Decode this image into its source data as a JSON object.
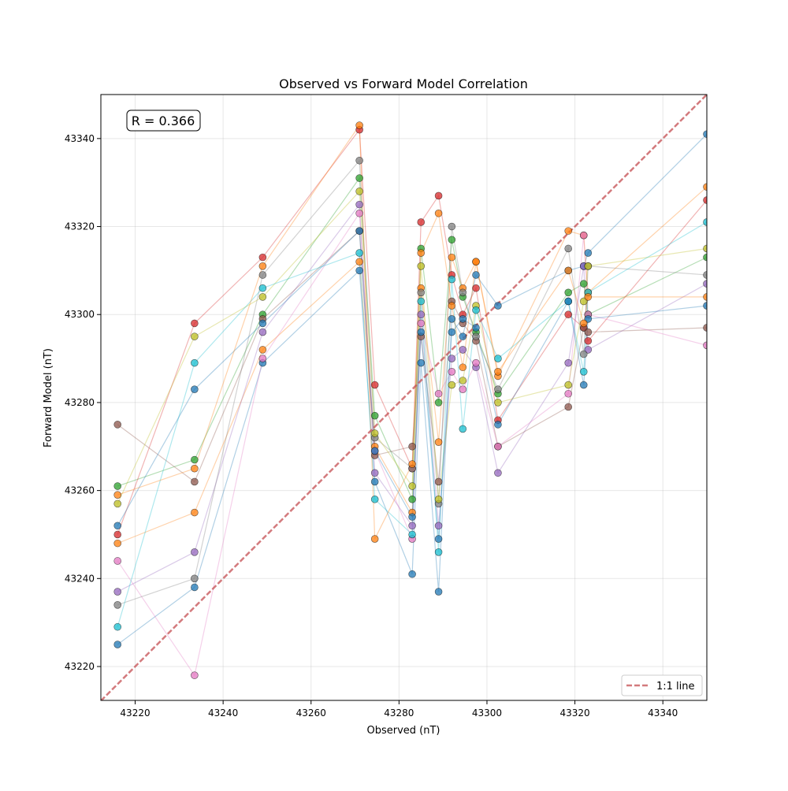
{
  "chart_data": {
    "type": "scatter",
    "title": "Observed vs Forward Model Correlation",
    "xlabel": "Observed (nT)",
    "ylabel": "Forward Model (nT)",
    "xlim": [
      43212.2,
      43350
    ],
    "ylim": [
      43212.3,
      43350
    ],
    "xticks": [
      43220,
      43240,
      43260,
      43280,
      43300,
      43320,
      43340
    ],
    "yticks": [
      43220,
      43240,
      43260,
      43280,
      43300,
      43320,
      43340
    ],
    "grid": true,
    "annotation": "R = 0.366",
    "legend": {
      "placement": "bottom-right",
      "entries": [
        "1:1 line"
      ]
    },
    "reference_line": {
      "label": "1:1 line",
      "color": "#c44e52",
      "style": "dashed"
    },
    "x": [
      43216,
      43233.5,
      43249,
      43271,
      43274.5,
      43283,
      43285,
      43289,
      43292,
      43294.5,
      43297.5,
      43302.5,
      43318.5,
      43322,
      43323,
      43350
    ],
    "colors": [
      "#1f77b4",
      "#ff7f0e",
      "#2ca02c",
      "#d62728",
      "#9467bd",
      "#8c564b",
      "#e377c2",
      "#7f7f7f",
      "#bcbd22",
      "#17becf"
    ],
    "series": [
      {
        "values": [
          43225,
          43238,
          43289,
          43310,
          43262,
          43241,
          43289,
          43237,
          43299,
          43295,
          43309,
          43302,
          43310,
          43311,
          43314,
          43341
        ]
      },
      {
        "values": [
          43248,
          43255,
          43292,
          43312,
          43270,
          43255,
          43306,
          43271,
          43313,
          43306,
          43312,
          43286,
          43319,
          43318,
          43305,
          43329
        ]
      },
      {
        "values": [
          43261,
          43267,
          43300,
          43331,
          43277,
          43258,
          43315,
          43280,
          43317,
          43304,
          43296,
          43282,
          43305,
          43307,
          43300,
          43313
        ]
      },
      {
        "values": [
          43250,
          43298,
          43313,
          43342,
          43284,
          43265,
          43321,
          43327,
          43309,
          43300,
          43306,
          43276,
          43300,
          43297,
          43294,
          43326
        ]
      },
      {
        "values": [
          43237,
          43246,
          43296,
          43325,
          43264,
          43252,
          43300,
          43252,
          43290,
          43292,
          43288,
          43264,
          43289,
          43311,
          43292,
          43307
        ]
      },
      {
        "values": [
          43275,
          43262,
          43299,
          43319,
          43268,
          43270,
          43295,
          43262,
          43303,
          43298,
          43294,
          43270,
          43279,
          43297,
          43296,
          43297
        ]
      },
      {
        "values": [
          43244,
          43218,
          43290,
          43323,
          43269,
          43249,
          43298,
          43282,
          43287,
          43283,
          43289,
          43270,
          43282,
          43318,
          43300,
          43293
        ]
      },
      {
        "values": [
          43234,
          43240,
          43309,
          43335,
          43272,
          43265,
          43305,
          43257,
          43320,
          43305,
          43295,
          43283,
          43315,
          43291,
          43311,
          43309
        ]
      },
      {
        "values": [
          43257,
          43295,
          43304,
          43328,
          43273,
          43261,
          43311,
          43258,
          43284,
          43285,
          43302,
          43280,
          43284,
          43303,
          43311,
          43315
        ]
      },
      {
        "values": [
          43229,
          43289,
          43306,
          43314,
          43258,
          43250,
          43303,
          43246,
          43308,
          43274,
          43301,
          43290,
          43303,
          43287,
          43305,
          43321
        ]
      },
      {
        "values": [
          43252,
          43283,
          43298,
          43319,
          43269,
          43254,
          43296,
          43249,
          43296,
          43299,
          43297,
          43275,
          43303,
          43284,
          43299,
          43302
        ]
      },
      {
        "values": [
          43259,
          43265,
          43311,
          43343,
          43249,
          43266,
          43314,
          43323,
          43302,
          43288,
          43312,
          43287,
          43310,
          43298,
          43304,
          43304
        ]
      }
    ]
  }
}
